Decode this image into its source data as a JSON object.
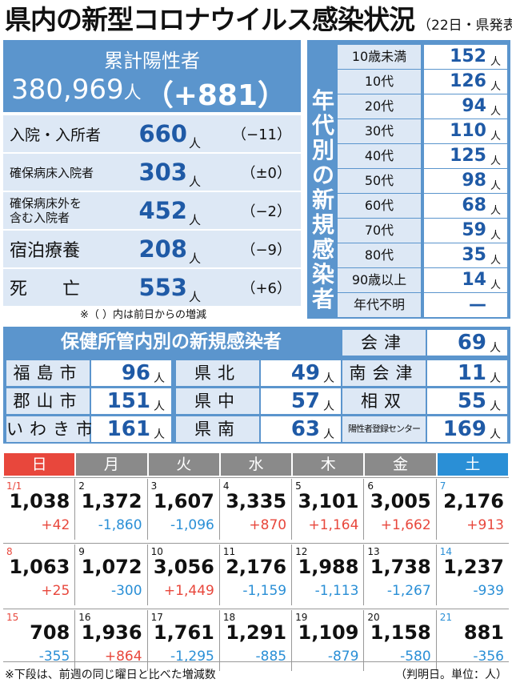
{
  "title": {
    "main": "県内の新型コロナウイルス感染状況",
    "sub": "（22日・県発表）"
  },
  "summary": {
    "label": "累計陽性者",
    "total": "380,969",
    "total_unit": "人",
    "diff": "（+881）",
    "rows": [
      {
        "name": "入院・入所者",
        "value": "660",
        "unit": "人",
        "change": "（−11）"
      },
      {
        "name": "確保病床入院者",
        "value": "303",
        "unit": "人",
        "change": "（±0）"
      },
      {
        "name": "確保病床外を含む入院者",
        "name_l1": "確保病床外を",
        "name_l2": "含む入院者",
        "value": "452",
        "unit": "人",
        "change": "（−2）"
      },
      {
        "name": "宿泊療養",
        "value": "208",
        "unit": "人",
        "change": "（−9）"
      },
      {
        "name": "死　　亡",
        "value": "553",
        "unit": "人",
        "change": "（+6）"
      }
    ],
    "note": "※（ ）内は前日からの増減"
  },
  "age": {
    "side_label": "年代別の新規感染者",
    "rows": [
      {
        "name": "10歳未満",
        "value": "152",
        "unit": "人"
      },
      {
        "name": "10代",
        "value": "126",
        "unit": "人"
      },
      {
        "name": "20代",
        "value": "94",
        "unit": "人"
      },
      {
        "name": "30代",
        "value": "110",
        "unit": "人"
      },
      {
        "name": "40代",
        "value": "125",
        "unit": "人"
      },
      {
        "name": "50代",
        "value": "98",
        "unit": "人"
      },
      {
        "name": "60代",
        "value": "68",
        "unit": "人"
      },
      {
        "name": "70代",
        "value": "59",
        "unit": "人"
      },
      {
        "name": "80代",
        "value": "35",
        "unit": "人"
      },
      {
        "name": "90歳以上",
        "value": "14",
        "unit": "人"
      },
      {
        "name": "年代不明",
        "value": "—",
        "unit": ""
      }
    ]
  },
  "health_centers": {
    "title": "保健所管内別の新規感染者",
    "cells": [
      {
        "name": "福島市",
        "value": "96",
        "unit": "人"
      },
      {
        "name": "県北",
        "value": "49",
        "unit": "人"
      },
      {
        "name": "南会津",
        "value": "11",
        "unit": "人"
      },
      {
        "name": "郡山市",
        "value": "151",
        "unit": "人"
      },
      {
        "name": "県中",
        "value": "57",
        "unit": "人"
      },
      {
        "name": "相双",
        "value": "55",
        "unit": "人"
      },
      {
        "name": "いわき市",
        "value": "161",
        "unit": "人"
      },
      {
        "name": "県南",
        "value": "63",
        "unit": "人"
      },
      {
        "name": "陽性者登録センター",
        "value": "169",
        "unit": "人"
      },
      {
        "name": "会津",
        "value": "69",
        "unit": "人"
      }
    ]
  },
  "calendar": {
    "weekdays": [
      "日",
      "月",
      "火",
      "水",
      "木",
      "金",
      "土"
    ],
    "weekday_colors": [
      "#e8473c",
      "#8a8a8a",
      "#8a8a8a",
      "#8a8a8a",
      "#8a8a8a",
      "#8a8a8a",
      "#2a8fd6"
    ],
    "weeks": [
      [
        {
          "date": "1/1",
          "count": "1,038",
          "change": "+42"
        },
        {
          "date": "2",
          "count": "1,372",
          "change": "-1,860"
        },
        {
          "date": "3",
          "count": "1,607",
          "change": "-1,096"
        },
        {
          "date": "4",
          "count": "3,335",
          "change": "+870"
        },
        {
          "date": "5",
          "count": "3,101",
          "change": "+1,164"
        },
        {
          "date": "6",
          "count": "3,005",
          "change": "+1,662"
        },
        {
          "date": "7",
          "count": "2,176",
          "change": "+913"
        }
      ],
      [
        {
          "date": "8",
          "count": "1,063",
          "change": "+25"
        },
        {
          "date": "9",
          "count": "1,072",
          "change": "-300"
        },
        {
          "date": "10",
          "count": "3,056",
          "change": "+1,449"
        },
        {
          "date": "11",
          "count": "2,176",
          "change": "-1,159"
        },
        {
          "date": "12",
          "count": "1,988",
          "change": "-1,113"
        },
        {
          "date": "13",
          "count": "1,738",
          "change": "-1,267"
        },
        {
          "date": "14",
          "count": "1,237",
          "change": "-939"
        }
      ],
      [
        {
          "date": "15",
          "count": "708",
          "change": "-355"
        },
        {
          "date": "16",
          "count": "1,936",
          "change": "+864"
        },
        {
          "date": "17",
          "count": "1,761",
          "change": "-1,295"
        },
        {
          "date": "18",
          "count": "1,291",
          "change": "-885"
        },
        {
          "date": "19",
          "count": "1,109",
          "change": "-879"
        },
        {
          "date": "20",
          "count": "1,158",
          "change": "-580"
        },
        {
          "date": "21",
          "count": "881",
          "change": "-356"
        }
      ]
    ],
    "colors": {
      "increase": "#e8473c",
      "decrease": "#2a8fd6"
    },
    "footnote_left": "※下段は、前週の同じ曜日と比べた増減数",
    "footnote_right": "（判明日。単位：人）"
  }
}
